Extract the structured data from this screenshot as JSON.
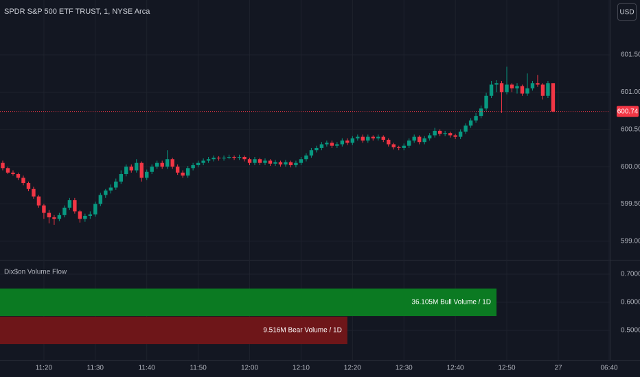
{
  "header": {
    "button": "USD"
  },
  "chart_data": [
    {
      "type": "candlestick",
      "title": "SPDR S&P 500 ETF TRUST, 1, NYSE Arca",
      "up_color": "#089981",
      "down_color": "#f23645",
      "categories": [
        "11:12",
        "11:13",
        "11:14",
        "11:15",
        "11:16",
        "11:17",
        "11:18",
        "11:19",
        "11:20",
        "11:21",
        "11:22",
        "11:23",
        "11:24",
        "11:25",
        "11:26",
        "11:27",
        "11:28",
        "11:29",
        "11:30",
        "11:31",
        "11:32",
        "11:33",
        "11:34",
        "11:35",
        "11:36",
        "11:37",
        "11:38",
        "11:39",
        "11:40",
        "11:41",
        "11:42",
        "11:43",
        "11:44",
        "11:45",
        "11:46",
        "11:47",
        "11:48",
        "11:49",
        "11:50",
        "11:51",
        "11:52",
        "11:53",
        "11:54",
        "11:55",
        "11:56",
        "11:57",
        "11:58",
        "11:59",
        "12:00",
        "12:01",
        "12:02",
        "12:03",
        "12:04",
        "12:05",
        "12:06",
        "12:07",
        "12:08",
        "12:09",
        "12:10",
        "12:11",
        "12:12",
        "12:13",
        "12:14",
        "12:15",
        "12:16",
        "12:17",
        "12:18",
        "12:19",
        "12:20",
        "12:21",
        "12:22",
        "12:23",
        "12:24",
        "12:25",
        "12:26",
        "12:27",
        "12:28",
        "12:29",
        "12:30",
        "12:31",
        "12:32",
        "12:33",
        "12:34",
        "12:35",
        "12:36",
        "12:37",
        "12:38",
        "12:39",
        "12:40",
        "12:41",
        "12:42",
        "12:43",
        "12:44",
        "12:45",
        "12:46",
        "12:47",
        "12:48",
        "12:49",
        "12:50",
        "12:51",
        "12:52",
        "12:53",
        "12:54",
        "12:55",
        "12:56",
        "12:57",
        "12:58",
        "12:59"
      ],
      "candles": [
        [
          600.05,
          600.08,
          599.95,
          599.98
        ],
        [
          599.98,
          600.0,
          599.9,
          599.92
        ],
        [
          599.92,
          599.95,
          599.88,
          599.9
        ],
        [
          599.9,
          599.92,
          599.82,
          599.85
        ],
        [
          599.85,
          599.88,
          599.75,
          599.78
        ],
        [
          599.78,
          599.8,
          599.67,
          599.7
        ],
        [
          599.7,
          599.73,
          599.57,
          599.6
        ],
        [
          599.6,
          599.62,
          599.45,
          599.48
        ],
        [
          599.48,
          599.5,
          599.3,
          599.38
        ],
        [
          599.38,
          599.42,
          599.24,
          599.32
        ],
        [
          599.32,
          599.35,
          599.22,
          599.3
        ],
        [
          599.3,
          599.38,
          599.27,
          599.35
        ],
        [
          599.35,
          599.48,
          599.32,
          599.45
        ],
        [
          599.45,
          599.58,
          599.42,
          599.55
        ],
        [
          599.55,
          599.58,
          599.37,
          599.4
        ],
        [
          599.4,
          599.42,
          599.25,
          599.3
        ],
        [
          599.3,
          599.37,
          599.26,
          599.34
        ],
        [
          599.34,
          599.4,
          599.3,
          599.36
        ],
        [
          599.36,
          599.53,
          599.33,
          599.5
        ],
        [
          599.5,
          599.65,
          599.47,
          599.62
        ],
        [
          599.62,
          599.7,
          599.58,
          599.68
        ],
        [
          599.68,
          599.76,
          599.64,
          599.72
        ],
        [
          599.72,
          599.84,
          599.69,
          599.8
        ],
        [
          599.8,
          599.95,
          599.77,
          599.9
        ],
        [
          599.9,
          600.03,
          599.87,
          600.0
        ],
        [
          600.0,
          600.03,
          599.92,
          599.95
        ],
        [
          599.95,
          600.1,
          599.92,
          600.05
        ],
        [
          600.05,
          600.07,
          599.8,
          599.85
        ],
        [
          599.85,
          599.96,
          599.82,
          599.93
        ],
        [
          599.93,
          600.03,
          599.9,
          600.0
        ],
        [
          600.0,
          600.08,
          599.97,
          600.05
        ],
        [
          600.05,
          600.08,
          599.97,
          600.0
        ],
        [
          600.0,
          600.22,
          599.97,
          600.1
        ],
        [
          600.1,
          600.12,
          599.97,
          600.0
        ],
        [
          600.0,
          600.03,
          599.89,
          599.92
        ],
        [
          599.92,
          599.95,
          599.85,
          599.88
        ],
        [
          599.88,
          600.01,
          599.85,
          599.98
        ],
        [
          599.98,
          600.05,
          599.95,
          600.02
        ],
        [
          600.02,
          600.08,
          599.99,
          600.05
        ],
        [
          600.05,
          600.11,
          600.02,
          600.08
        ],
        [
          600.08,
          600.13,
          600.05,
          600.1
        ],
        [
          600.1,
          600.15,
          600.07,
          600.12
        ],
        [
          600.12,
          600.14,
          600.08,
          600.11
        ],
        [
          600.11,
          600.15,
          600.08,
          600.12
        ],
        [
          600.12,
          600.16,
          600.1,
          600.13
        ],
        [
          600.13,
          600.15,
          600.09,
          600.12
        ],
        [
          600.12,
          600.16,
          600.09,
          600.13
        ],
        [
          600.13,
          600.15,
          600.07,
          600.1
        ],
        [
          600.1,
          600.12,
          600.02,
          600.05
        ],
        [
          600.05,
          600.13,
          600.02,
          600.1
        ],
        [
          600.1,
          600.12,
          600.02,
          600.05
        ],
        [
          600.05,
          600.11,
          600.02,
          600.08
        ],
        [
          600.08,
          600.1,
          600.01,
          600.04
        ],
        [
          600.04,
          600.09,
          600.01,
          600.06
        ],
        [
          600.06,
          600.08,
          600.0,
          600.03
        ],
        [
          600.03,
          600.09,
          600.0,
          600.06
        ],
        [
          600.06,
          600.08,
          599.99,
          600.02
        ],
        [
          600.02,
          600.08,
          599.99,
          600.05
        ],
        [
          600.05,
          600.13,
          600.02,
          600.1
        ],
        [
          600.1,
          600.18,
          600.07,
          600.15
        ],
        [
          600.15,
          600.25,
          600.12,
          600.22
        ],
        [
          600.22,
          600.28,
          600.19,
          600.25
        ],
        [
          600.25,
          600.33,
          600.22,
          600.3
        ],
        [
          600.3,
          600.35,
          600.27,
          600.32
        ],
        [
          600.32,
          600.35,
          600.25,
          600.28
        ],
        [
          600.28,
          600.33,
          600.25,
          600.3
        ],
        [
          600.3,
          600.38,
          600.27,
          600.35
        ],
        [
          600.35,
          600.38,
          600.29,
          600.32
        ],
        [
          600.32,
          600.41,
          600.29,
          600.38
        ],
        [
          600.38,
          600.43,
          600.35,
          600.4
        ],
        [
          600.4,
          600.43,
          600.32,
          600.35
        ],
        [
          600.35,
          600.43,
          600.32,
          600.4
        ],
        [
          600.4,
          600.42,
          600.35,
          600.38
        ],
        [
          600.38,
          600.43,
          600.35,
          600.4
        ],
        [
          600.4,
          600.42,
          600.33,
          600.36
        ],
        [
          600.36,
          600.38,
          600.27,
          600.3
        ],
        [
          600.3,
          600.32,
          600.23,
          600.26
        ],
        [
          600.26,
          600.28,
          600.22,
          600.25
        ],
        [
          600.25,
          600.31,
          600.22,
          600.28
        ],
        [
          600.28,
          600.38,
          600.25,
          600.35
        ],
        [
          600.35,
          600.43,
          600.32,
          600.4
        ],
        [
          600.4,
          600.42,
          600.3,
          600.33
        ],
        [
          600.33,
          600.41,
          600.3,
          600.38
        ],
        [
          600.38,
          600.45,
          600.35,
          600.42
        ],
        [
          600.42,
          600.52,
          600.39,
          600.48
        ],
        [
          600.48,
          600.5,
          600.41,
          600.44
        ],
        [
          600.44,
          600.48,
          600.41,
          600.45
        ],
        [
          600.45,
          600.47,
          600.39,
          600.42
        ],
        [
          600.42,
          600.44,
          600.37,
          600.4
        ],
        [
          600.4,
          600.5,
          600.37,
          600.47
        ],
        [
          600.47,
          600.58,
          600.44,
          600.55
        ],
        [
          600.55,
          600.65,
          600.52,
          600.62
        ],
        [
          600.62,
          600.72,
          600.59,
          600.68
        ],
        [
          600.68,
          600.82,
          600.65,
          600.78
        ],
        [
          600.78,
          600.99,
          600.75,
          600.95
        ],
        [
          600.95,
          601.15,
          600.92,
          601.1
        ],
        [
          601.1,
          601.16,
          601.0,
          601.12
        ],
        [
          601.12,
          601.15,
          600.72,
          601.0
        ],
        [
          601.0,
          601.34,
          600.97,
          601.1
        ],
        [
          601.1,
          601.12,
          601.0,
          601.05
        ],
        [
          601.05,
          601.12,
          600.98,
          601.08
        ],
        [
          601.08,
          601.1,
          600.95,
          600.98
        ],
        [
          600.98,
          601.25,
          600.95,
          601.05
        ],
        [
          601.05,
          601.15,
          601.02,
          601.12
        ],
        [
          601.12,
          601.23,
          601.07,
          601.1
        ],
        [
          601.1,
          601.12,
          600.9,
          600.95
        ],
        [
          600.95,
          601.15,
          600.92,
          601.12
        ],
        [
          601.12,
          601.12,
          600.73,
          600.74
        ]
      ],
      "last_price": 600.74,
      "ylim": [
        598.76,
        602.235
      ],
      "yticks": [
        {
          "value": 599,
          "label": "599.00"
        },
        {
          "value": 599.5,
          "label": "599.50"
        },
        {
          "value": 600,
          "label": "600.00"
        },
        {
          "value": 600.5,
          "label": "600.50"
        },
        {
          "value": 601,
          "label": "601.00"
        },
        {
          "value": 601.5,
          "label": "601.50"
        }
      ],
      "xticks": [
        "11:20",
        "11:30",
        "11:40",
        "11:50",
        "12:00",
        "12:10",
        "12:20",
        "12:30",
        "12:40",
        "12:50",
        "27",
        "06:40"
      ],
      "grid": true
    },
    {
      "type": "volume-flow",
      "title": "Dix$on Volume Flow",
      "ylim": [
        0.395,
        0.7488
      ],
      "yticks": [
        {
          "value": 0.5,
          "label": "0.5000"
        },
        {
          "value": 0.6,
          "label": "0.6000"
        },
        {
          "value": 0.7,
          "label": "0.7000"
        }
      ],
      "bars": [
        {
          "label": "36.105M Bull Volume / 1D",
          "value": 0.6,
          "end": "12:48",
          "color": "#0b7a22"
        },
        {
          "label": "9.516M Bear Volume / 1D",
          "value": 0.5,
          "end": "12:19",
          "color": "#6e1619"
        }
      ],
      "grid": true
    }
  ]
}
